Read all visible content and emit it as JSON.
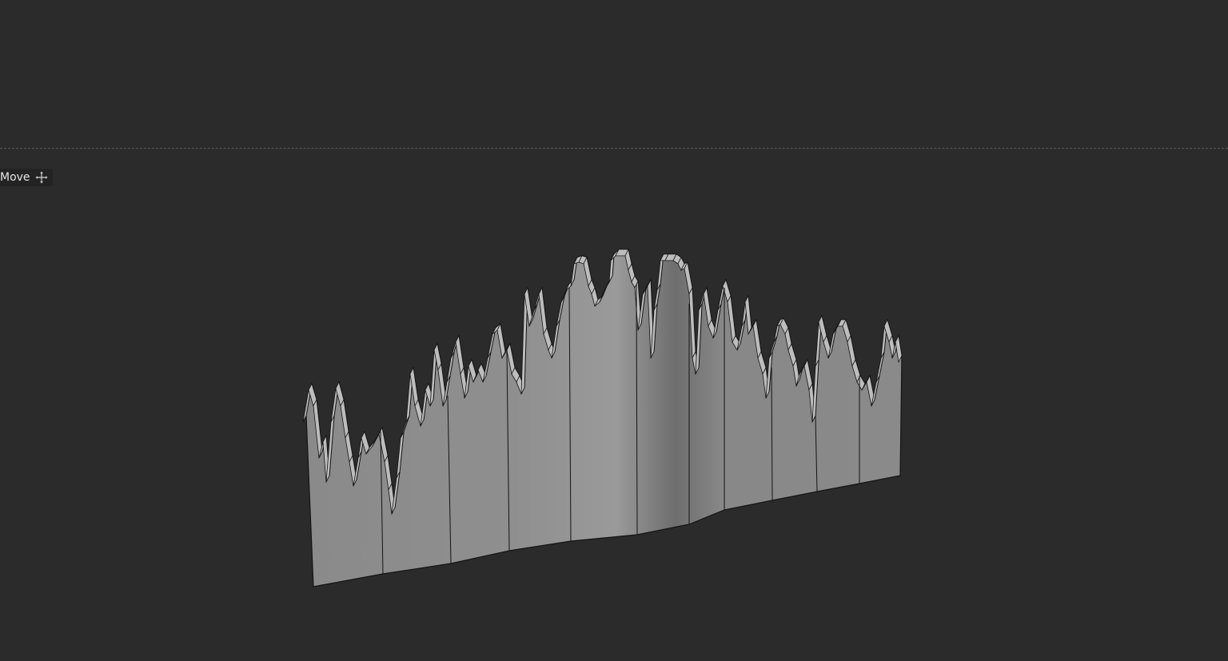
{
  "viewport": {
    "background": "#2b2b2b",
    "horizon_color": "#5a5a5a"
  },
  "tool_overlay": {
    "label": "Move",
    "icon": "move-arrows-icon"
  },
  "mesh": {
    "fill_light": "#a6a6a6",
    "fill_dark": "#5e5e5e",
    "edge_color": "#141414",
    "cap_color": "#bdbdbd"
  }
}
